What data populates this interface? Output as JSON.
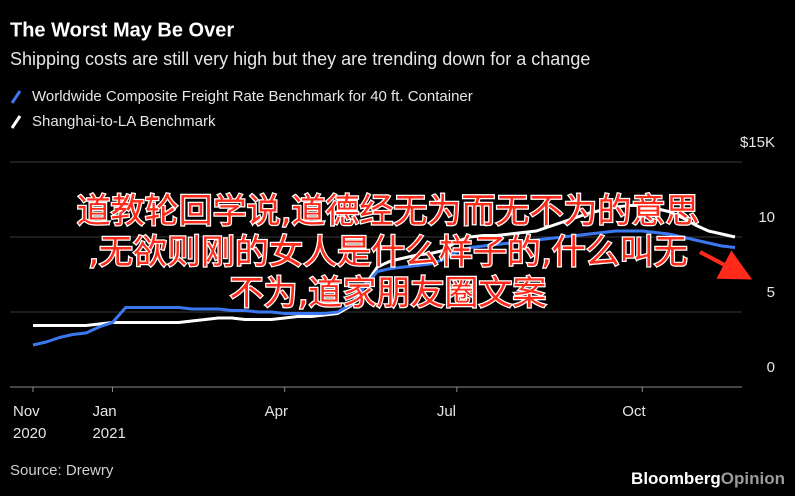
{
  "chart_data": {
    "type": "line",
    "title": "The Worst May Be Over",
    "subtitle": "Shipping costs are still very high but they are trending down for a change",
    "source": "Source: Drewry",
    "brand": "Bloomberg",
    "brand_suffix": "Opinion",
    "overlay_text": [
      "道教轮回学说,道德经无为而无不为的意思",
      ",无欲则刚的女人是什么样子的,什么叫无",
      "不为,道家朋友圈文案"
    ],
    "categories": [
      "Nov\n2020",
      null,
      null,
      null,
      null,
      null,
      "Jan\n2021",
      null,
      null,
      null,
      null,
      null,
      null,
      null,
      null,
      null,
      null,
      null,
      null,
      "Apr",
      null,
      null,
      null,
      null,
      null,
      null,
      null,
      null,
      null,
      null,
      null,
      null,
      "Jul",
      null,
      null,
      null,
      null,
      null,
      null,
      null,
      null,
      null,
      null,
      null,
      null,
      null,
      "Oct",
      null,
      null,
      null,
      null,
      null,
      null,
      null
    ],
    "series": [
      {
        "name": "Worldwide Composite Freight Rate Benchmark for 40 ft. Container",
        "color": "#3b78f0",
        "values": [
          2.8,
          3.0,
          3.3,
          3.5,
          3.6,
          4.0,
          4.3,
          5.3,
          5.3,
          5.3,
          5.3,
          5.3,
          5.2,
          5.2,
          5.2,
          5.1,
          5.1,
          5.0,
          5.0,
          4.9,
          4.9,
          4.9,
          4.9,
          5.0,
          5.5,
          6.7,
          7.7,
          7.9,
          8.0,
          8.1,
          8.2,
          8.5,
          9.0,
          9.3,
          9.4,
          9.5,
          9.6,
          9.7,
          9.8,
          9.9,
          10.0,
          10.1,
          10.2,
          10.3,
          10.4,
          10.4,
          10.4,
          10.3,
          10.2,
          10.0,
          9.8,
          9.6,
          9.4,
          9.3
        ]
      },
      {
        "name": "Shanghai-to-LA Benchmark",
        "color": "#ffffff",
        "values": [
          4.1,
          4.1,
          4.1,
          4.1,
          4.1,
          4.2,
          4.3,
          4.3,
          4.3,
          4.3,
          4.3,
          4.3,
          4.4,
          4.5,
          4.6,
          4.6,
          4.5,
          4.5,
          4.5,
          4.6,
          4.7,
          4.7,
          4.8,
          4.9,
          5.4,
          6.7,
          8.0,
          8.4,
          8.6,
          8.8,
          8.9,
          9.1,
          9.7,
          10.0,
          10.1,
          10.1,
          10.2,
          10.3,
          10.4,
          10.7,
          11.0,
          11.3,
          11.6,
          11.8,
          12.0,
          12.1,
          12.1,
          11.9,
          11.7,
          11.3,
          10.8,
          10.4,
          10.2,
          10.0
        ]
      }
    ],
    "ylim": [
      0,
      15
    ],
    "yticks": [
      0,
      5,
      10,
      {
        "value": 15,
        "label": "$15K"
      }
    ],
    "grid": true
  }
}
